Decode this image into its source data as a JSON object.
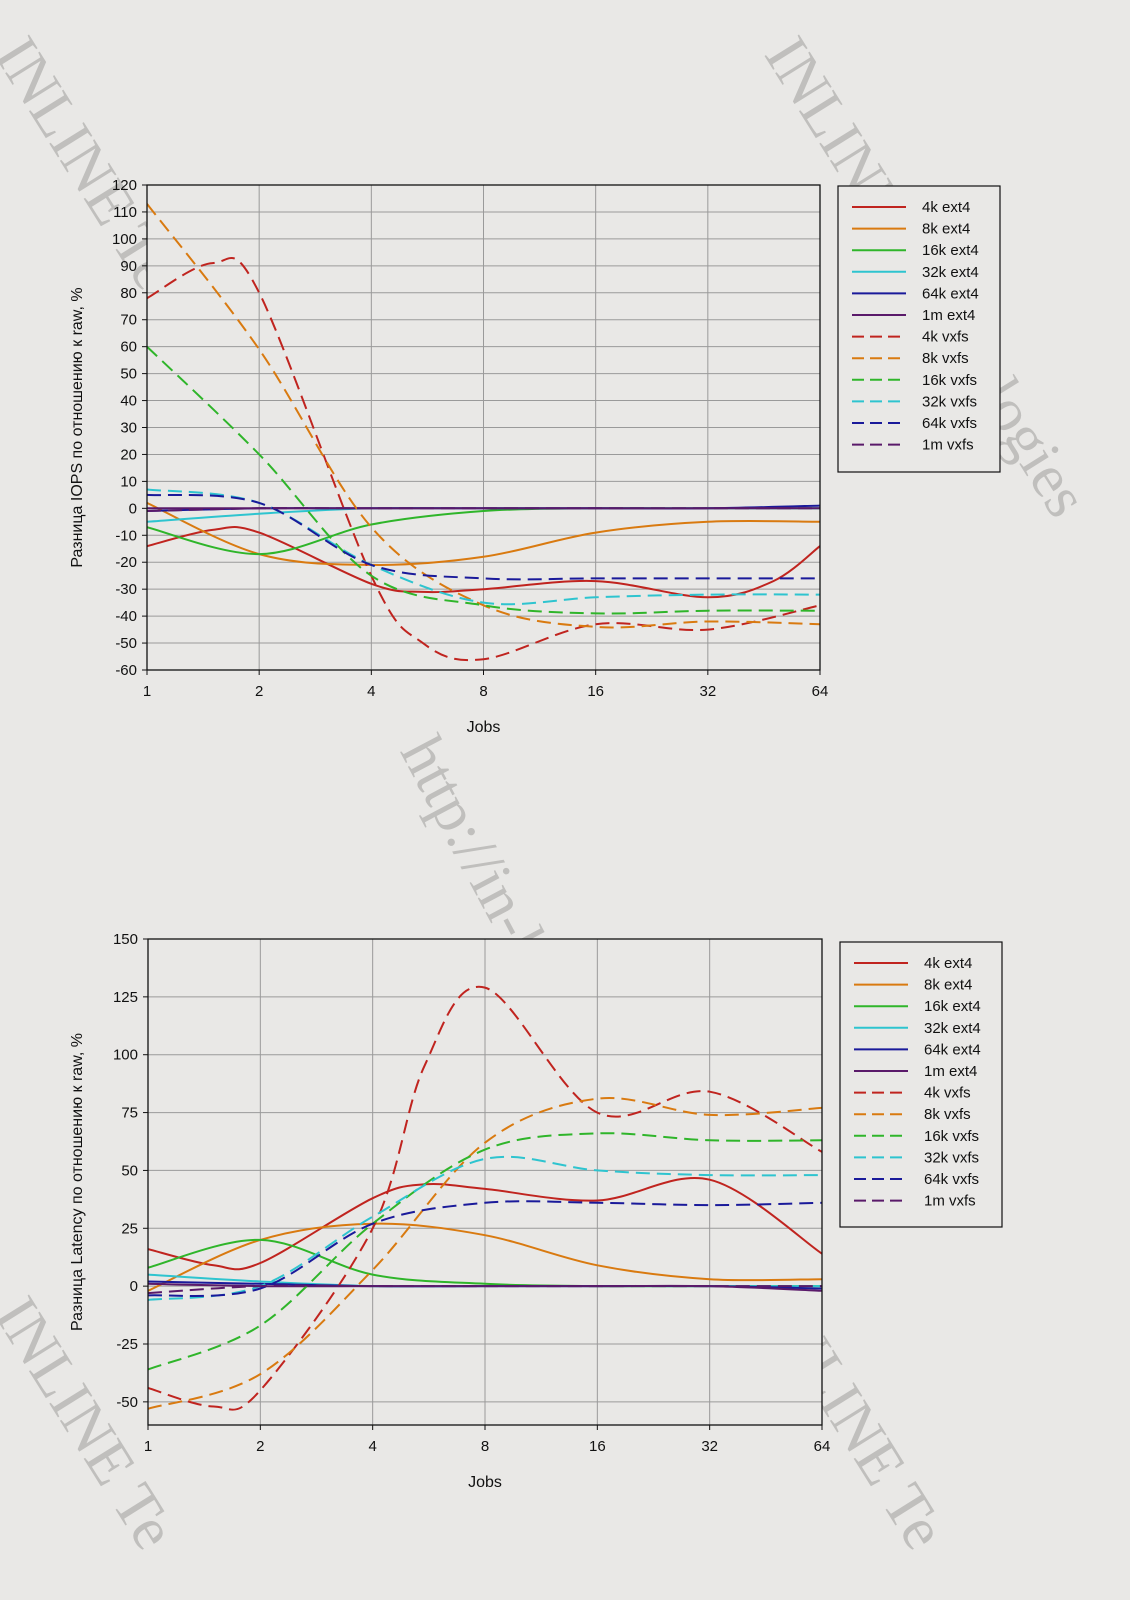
{
  "watermarks": [
    "INLINE Technologies",
    "INLINE Technologies",
    "http://in-line.ru",
    "INLINE Te",
    "INLINE Te"
  ],
  "series_style": {
    "4k": "#c0241f",
    "8k": "#d97a10",
    "16k": "#2fb52a",
    "32k": "#2ec4cf",
    "64k": "#1a1a9a",
    "1m": "#5a1a6a"
  },
  "chart_data": [
    {
      "type": "line",
      "xscale": "log2",
      "x": [
        1,
        2,
        4,
        8,
        16,
        32,
        64
      ],
      "x_tick_labels": [
        "1",
        "2",
        "4",
        "8",
        "16",
        "32",
        "64"
      ],
      "xlabel": "Jobs",
      "ylabel": "Разница IOPS по отношению к raw, %",
      "ylim": [
        -60,
        120
      ],
      "yticks": [
        -60,
        -50,
        -40,
        -30,
        -20,
        -10,
        0,
        10,
        20,
        30,
        40,
        50,
        60,
        70,
        80,
        90,
        100,
        110,
        120
      ],
      "grid": true,
      "legend": "right",
      "series": [
        {
          "name": "4k ext4",
          "key": "4k",
          "dash": false,
          "x": [
            1,
            1.5,
            2,
            4,
            5.5,
            8,
            16,
            32,
            48,
            64
          ],
          "values": [
            -14,
            -8,
            -9,
            -28,
            -31,
            -30,
            -27,
            -33,
            -27,
            -14
          ]
        },
        {
          "name": "8k ext4",
          "key": "8k",
          "dash": false,
          "x": [
            1,
            2,
            4,
            8,
            16,
            32,
            64
          ],
          "values": [
            2,
            -17,
            -21,
            -18,
            -9,
            -5,
            -5
          ]
        },
        {
          "name": "16k ext4",
          "key": "16k",
          "dash": false,
          "x": [
            1,
            2,
            4,
            8,
            16,
            32,
            64
          ],
          "values": [
            -7,
            -17,
            -6,
            -1,
            0,
            0,
            0
          ]
        },
        {
          "name": "32k ext4",
          "key": "32k",
          "dash": false,
          "x": [
            1,
            2,
            4,
            8,
            16,
            32,
            64
          ],
          "values": [
            -5,
            -2,
            0,
            0,
            0,
            0,
            0
          ]
        },
        {
          "name": "64k ext4",
          "key": "64k",
          "dash": false,
          "x": [
            1,
            2,
            4,
            8,
            16,
            32,
            64
          ],
          "values": [
            -1,
            0,
            0,
            0,
            0,
            0,
            1
          ]
        },
        {
          "name": "1m ext4",
          "key": "1m",
          "dash": false,
          "x": [
            1,
            2,
            4,
            8,
            16,
            32,
            64
          ],
          "values": [
            0,
            0,
            0,
            0,
            0,
            0,
            0
          ]
        },
        {
          "name": "4k vxfs",
          "key": "4k",
          "dash": true,
          "x": [
            1,
            1.5,
            2,
            4,
            5.5,
            8,
            16,
            32,
            64
          ],
          "values": [
            78,
            91,
            80,
            -25,
            -50,
            -56,
            -43,
            -45,
            -36
          ]
        },
        {
          "name": "8k vxfs",
          "key": "8k",
          "dash": true,
          "x": [
            1,
            2,
            4,
            8,
            16,
            32,
            64
          ],
          "values": [
            113,
            59,
            -7,
            -36,
            -44,
            -42,
            -43
          ]
        },
        {
          "name": "16k vxfs",
          "key": "16k",
          "dash": true,
          "x": [
            1,
            2,
            4,
            8,
            16,
            32,
            64
          ],
          "values": [
            60,
            20,
            -25,
            -36,
            -39,
            -38,
            -38
          ]
        },
        {
          "name": "32k vxfs",
          "key": "32k",
          "dash": true,
          "x": [
            1,
            2,
            4,
            8,
            16,
            32,
            64
          ],
          "values": [
            7,
            2,
            -21,
            -35,
            -33,
            -32,
            -32
          ]
        },
        {
          "name": "64k vxfs",
          "key": "64k",
          "dash": true,
          "x": [
            1,
            2,
            4,
            8,
            16,
            32,
            64
          ],
          "values": [
            5,
            2,
            -21,
            -26,
            -26,
            -26,
            -26
          ]
        },
        {
          "name": "1m vxfs",
          "key": "1m",
          "dash": true,
          "x": [
            1,
            2,
            4,
            8,
            16,
            32,
            64
          ],
          "values": [
            -1,
            0,
            0,
            0,
            0,
            0,
            0
          ]
        }
      ]
    },
    {
      "type": "line",
      "xscale": "log2",
      "x": [
        1,
        2,
        4,
        8,
        16,
        32,
        64
      ],
      "x_tick_labels": [
        "1",
        "2",
        "4",
        "8",
        "16",
        "32",
        "64"
      ],
      "xlabel": "Jobs",
      "ylabel": "Разница Latency по отношению к raw, %",
      "ylim": [
        -60,
        150
      ],
      "yticks": [
        -50,
        -25,
        0,
        25,
        50,
        75,
        100,
        125,
        150
      ],
      "grid": true,
      "legend": "right",
      "series": [
        {
          "name": "4k ext4",
          "key": "4k",
          "dash": false,
          "x": [
            1,
            1.5,
            2,
            4,
            5.5,
            8,
            16,
            32,
            64
          ],
          "values": [
            16,
            9,
            10,
            38,
            44,
            42,
            37,
            46,
            14
          ]
        },
        {
          "name": "8k ext4",
          "key": "8k",
          "dash": false,
          "x": [
            1,
            2,
            4,
            8,
            16,
            32,
            64
          ],
          "values": [
            -2,
            20,
            27,
            22,
            9,
            3,
            3
          ]
        },
        {
          "name": "16k ext4",
          "key": "16k",
          "dash": false,
          "x": [
            1,
            2,
            4,
            8,
            16,
            32,
            64
          ],
          "values": [
            8,
            20,
            5,
            1,
            0,
            0,
            0
          ]
        },
        {
          "name": "32k ext4",
          "key": "32k",
          "dash": false,
          "x": [
            1,
            2,
            4,
            8,
            16,
            32,
            64
          ],
          "values": [
            5,
            2,
            0,
            0,
            0,
            0,
            0
          ]
        },
        {
          "name": "64k ext4",
          "key": "64k",
          "dash": false,
          "x": [
            1,
            2,
            4,
            8,
            16,
            32,
            64
          ],
          "values": [
            2,
            1,
            0,
            0,
            0,
            0,
            -1
          ]
        },
        {
          "name": "1m ext4",
          "key": "1m",
          "dash": false,
          "x": [
            1,
            2,
            4,
            8,
            16,
            32,
            64
          ],
          "values": [
            1,
            0,
            0,
            0,
            0,
            0,
            -2
          ]
        },
        {
          "name": "4k vxfs",
          "key": "4k",
          "dash": true,
          "x": [
            1,
            1.5,
            2,
            4,
            5.5,
            8,
            16,
            32,
            64
          ],
          "values": [
            -44,
            -52,
            -45,
            25,
            95,
            129,
            75,
            84,
            58
          ]
        },
        {
          "name": "8k vxfs",
          "key": "8k",
          "dash": true,
          "x": [
            1,
            2,
            4,
            8,
            16,
            32,
            64
          ],
          "values": [
            -53,
            -38,
            7,
            62,
            81,
            74,
            77
          ]
        },
        {
          "name": "16k vxfs",
          "key": "16k",
          "dash": true,
          "x": [
            1,
            2,
            4,
            8,
            16,
            32,
            64
          ],
          "values": [
            -36,
            -17,
            27,
            59,
            66,
            63,
            63
          ]
        },
        {
          "name": "32k vxfs",
          "key": "32k",
          "dash": true,
          "x": [
            1,
            2,
            4,
            8,
            16,
            32,
            64
          ],
          "values": [
            -6,
            0,
            30,
            55,
            50,
            48,
            48
          ]
        },
        {
          "name": "64k vxfs",
          "key": "64k",
          "dash": true,
          "x": [
            1,
            2,
            4,
            8,
            16,
            32,
            64
          ],
          "values": [
            -4,
            -1,
            27,
            36,
            36,
            35,
            36
          ]
        },
        {
          "name": "1m vxfs",
          "key": "1m",
          "dash": true,
          "x": [
            1,
            2,
            4,
            8,
            16,
            32,
            64
          ],
          "values": [
            -3,
            0,
            0,
            0,
            0,
            0,
            0
          ]
        }
      ]
    }
  ]
}
